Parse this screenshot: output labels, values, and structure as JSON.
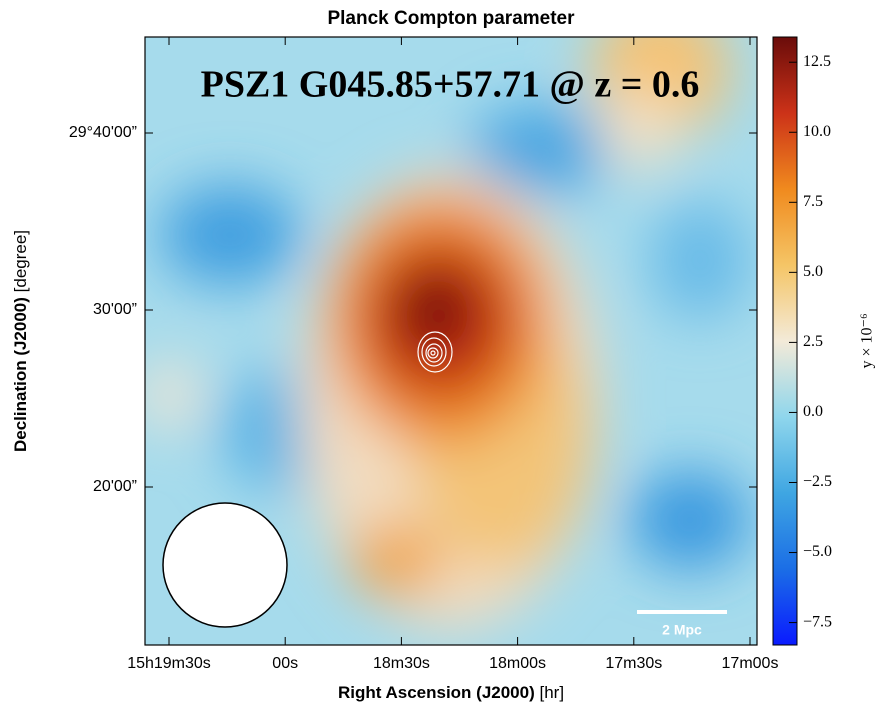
{
  "chart_data": {
    "type": "image",
    "title": "Planck Compton parameter",
    "annotation": "PSZ1 G045.85+57.71 @ z = 0.6",
    "x_label": "Right Ascension (J2000)",
    "x_unit": "[hr]",
    "y_label": "Declination (J2000)",
    "y_unit": "[degree]",
    "xtick_labels": [
      "15h19m30s",
      "00s",
      "18m30s",
      "18m00s",
      "17m30s",
      "17m00s"
    ],
    "ytick_labels": [
      "29°40'00”",
      "30'00”",
      "20'00”"
    ],
    "scale_bar": "2 Mpc",
    "colorbar": {
      "label": "y × 10⁻⁶",
      "ylim": [
        -8.3,
        13.4
      ],
      "yticks": [
        {
          "value": -7.5,
          "label": "−7.5"
        },
        {
          "value": -5,
          "label": "−5.0"
        },
        {
          "value": -2.5,
          "label": "−2.5"
        },
        {
          "value": 0,
          "label": "0.0"
        },
        2.5,
        {
          "value": 5,
          "label": "5.0"
        },
        7.5,
        {
          "value": 10,
          "label": "10.0"
        },
        12.5
      ],
      "colors": [
        "#0a1aff",
        "#1b6ee6",
        "#3fa6e2",
        "#8fd6ec",
        "#f3ead8",
        "#f5c566",
        "#f08a1e",
        "#cc3218",
        "#6a0c0a"
      ]
    }
  }
}
